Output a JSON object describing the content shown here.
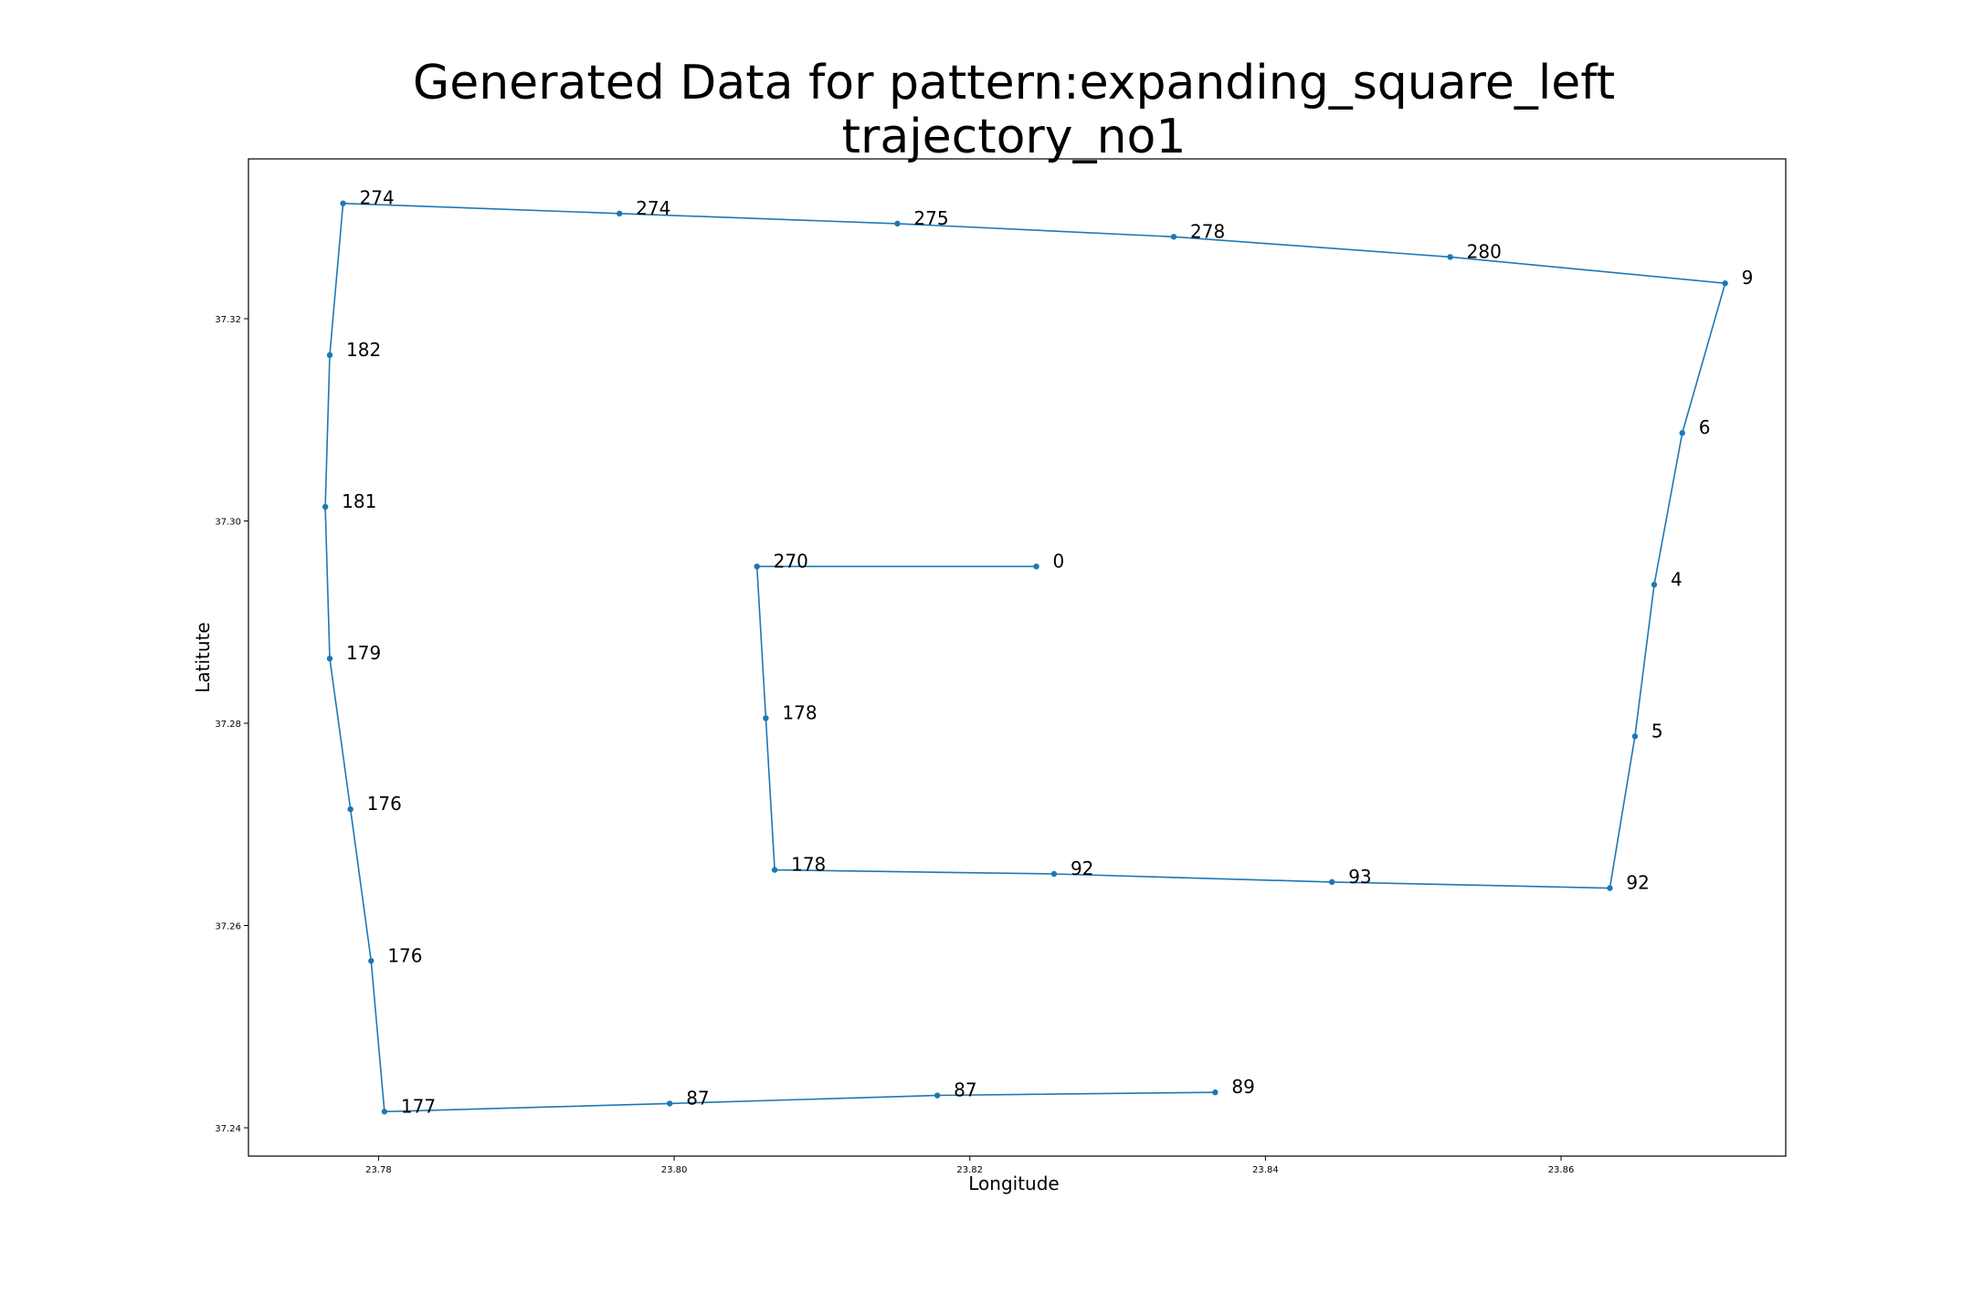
{
  "chart_data": {
    "type": "line",
    "title_line1": "Generated Data for pattern:expanding_square_left",
    "title_line2": "trajectory_no1",
    "xlabel": "Longitude",
    "ylabel": "Latitute",
    "xlim": [
      23.7712,
      23.8752
    ],
    "ylim": [
      37.2372,
      37.3358
    ],
    "xticks": [
      23.78,
      23.8,
      23.82,
      23.84,
      23.86
    ],
    "xtick_labels": [
      "23.78",
      "23.80",
      "23.82",
      "23.84",
      "23.86"
    ],
    "yticks": [
      37.24,
      37.26,
      37.28,
      37.3,
      37.32
    ],
    "ytick_labels": [
      "37.24",
      "37.26",
      "37.28",
      "37.30",
      "37.32"
    ],
    "grid": false,
    "line_color": "#1f77b4",
    "series": [
      {
        "points": [
          {
            "x": 23.8245,
            "y": 37.2955,
            "label": "0"
          },
          {
            "x": 23.8056,
            "y": 37.2955,
            "label": "270"
          },
          {
            "x": 23.8062,
            "y": 37.2805,
            "label": "178"
          },
          {
            "x": 23.8068,
            "y": 37.2655,
            "label": "178"
          },
          {
            "x": 23.8257,
            "y": 37.2651,
            "label": "92"
          },
          {
            "x": 23.8445,
            "y": 37.2643,
            "label": "93"
          },
          {
            "x": 23.8633,
            "y": 37.2637,
            "label": "92"
          },
          {
            "x": 23.865,
            "y": 37.2787,
            "label": "5"
          },
          {
            "x": 23.8663,
            "y": 37.2937,
            "label": "4"
          },
          {
            "x": 23.8682,
            "y": 37.3087,
            "label": "6"
          },
          {
            "x": 23.8711,
            "y": 37.3235,
            "label": "9"
          },
          {
            "x": 23.8525,
            "y": 37.3261,
            "label": "280"
          },
          {
            "x": 23.8338,
            "y": 37.3281,
            "label": "278"
          },
          {
            "x": 23.8151,
            "y": 37.3294,
            "label": "275"
          },
          {
            "x": 23.7963,
            "y": 37.3304,
            "label": "274"
          },
          {
            "x": 23.7776,
            "y": 37.3314,
            "label": "274"
          },
          {
            "x": 23.7767,
            "y": 37.3164,
            "label": "182"
          },
          {
            "x": 23.7764,
            "y": 37.3014,
            "label": "181"
          },
          {
            "x": 23.7767,
            "y": 37.2864,
            "label": "179"
          },
          {
            "x": 23.7781,
            "y": 37.2715,
            "label": "176"
          },
          {
            "x": 23.7795,
            "y": 37.2565,
            "label": "176"
          },
          {
            "x": 23.7804,
            "y": 37.2416,
            "label": "177"
          },
          {
            "x": 23.7997,
            "y": 37.2424,
            "label": "87"
          },
          {
            "x": 23.8178,
            "y": 37.2432,
            "label": "87"
          },
          {
            "x": 23.8366,
            "y": 37.2435,
            "label": "89"
          }
        ]
      }
    ]
  }
}
